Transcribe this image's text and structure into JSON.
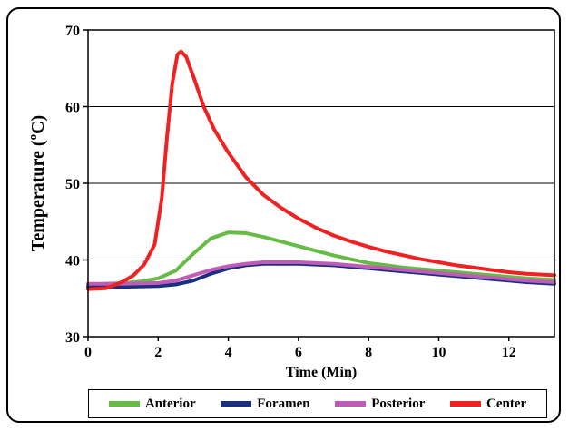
{
  "chart_data": {
    "type": "line",
    "title": "",
    "xlabel": "Time (Min)",
    "ylabel": "Temperature (°C)",
    "ylabel_parts": {
      "before": "Temperature (",
      "sup": "o",
      "after": "C)"
    },
    "xlim": [
      0,
      13.3
    ],
    "ylim": [
      30,
      70
    ],
    "x_ticks": [
      0,
      2,
      4,
      6,
      8,
      10,
      12
    ],
    "y_ticks": [
      30,
      40,
      50,
      60,
      70
    ],
    "grid": "horizontal",
    "legend_position": "bottom",
    "series": [
      {
        "name": "Anterior",
        "color": "#66bb44",
        "points": [
          [
            0,
            36.8
          ],
          [
            0.5,
            36.9
          ],
          [
            1.0,
            37.0
          ],
          [
            1.5,
            37.2
          ],
          [
            2.0,
            37.6
          ],
          [
            2.5,
            38.6
          ],
          [
            3.0,
            40.8
          ],
          [
            3.5,
            42.8
          ],
          [
            4.0,
            43.6
          ],
          [
            4.5,
            43.5
          ],
          [
            5.0,
            43.0
          ],
          [
            5.5,
            42.4
          ],
          [
            6.0,
            41.8
          ],
          [
            6.5,
            41.2
          ],
          [
            7.0,
            40.6
          ],
          [
            7.5,
            40.1
          ],
          [
            8.0,
            39.6
          ],
          [
            8.5,
            39.3
          ],
          [
            9.0,
            39.0
          ],
          [
            9.5,
            38.8
          ],
          [
            10.0,
            38.6
          ],
          [
            10.5,
            38.4
          ],
          [
            11.0,
            38.2
          ],
          [
            11.5,
            38.0
          ],
          [
            12.0,
            37.8
          ],
          [
            12.5,
            37.6
          ],
          [
            13.3,
            37.4
          ]
        ]
      },
      {
        "name": "Foramen",
        "color": "#1a2f80",
        "points": [
          [
            0,
            36.5
          ],
          [
            1.0,
            36.5
          ],
          [
            2.0,
            36.6
          ],
          [
            2.5,
            36.8
          ],
          [
            3.0,
            37.3
          ],
          [
            3.5,
            38.2
          ],
          [
            4.0,
            38.9
          ],
          [
            4.5,
            39.3
          ],
          [
            5.0,
            39.5
          ],
          [
            5.5,
            39.5
          ],
          [
            6.0,
            39.5
          ],
          [
            6.5,
            39.4
          ],
          [
            7.0,
            39.3
          ],
          [
            7.5,
            39.1
          ],
          [
            8.0,
            38.9
          ],
          [
            8.5,
            38.7
          ],
          [
            9.0,
            38.5
          ],
          [
            9.5,
            38.3
          ],
          [
            10.0,
            38.1
          ],
          [
            10.5,
            37.9
          ],
          [
            11.0,
            37.7
          ],
          [
            11.5,
            37.5
          ],
          [
            12.0,
            37.3
          ],
          [
            12.5,
            37.1
          ],
          [
            13.3,
            36.9
          ]
        ]
      },
      {
        "name": "Posterior",
        "color": "#c05cb8",
        "points": [
          [
            0,
            36.9
          ],
          [
            1.0,
            36.9
          ],
          [
            2.0,
            37.0
          ],
          [
            2.5,
            37.3
          ],
          [
            3.0,
            38.0
          ],
          [
            3.5,
            38.7
          ],
          [
            4.0,
            39.2
          ],
          [
            4.5,
            39.5
          ],
          [
            5.0,
            39.7
          ],
          [
            5.5,
            39.7
          ],
          [
            6.0,
            39.7
          ],
          [
            6.5,
            39.6
          ],
          [
            7.0,
            39.5
          ],
          [
            7.5,
            39.3
          ],
          [
            8.0,
            39.1
          ],
          [
            8.5,
            38.9
          ],
          [
            9.0,
            38.7
          ],
          [
            9.5,
            38.5
          ],
          [
            10.0,
            38.3
          ],
          [
            10.5,
            38.1
          ],
          [
            11.0,
            37.9
          ],
          [
            11.5,
            37.7
          ],
          [
            12.0,
            37.5
          ],
          [
            12.5,
            37.3
          ],
          [
            13.3,
            37.1
          ]
        ]
      },
      {
        "name": "Center",
        "color": "#ee2222",
        "points": [
          [
            0,
            36.2
          ],
          [
            0.5,
            36.3
          ],
          [
            0.8,
            36.8
          ],
          [
            1.0,
            37.2
          ],
          [
            1.3,
            38.0
          ],
          [
            1.6,
            39.4
          ],
          [
            1.9,
            42.0
          ],
          [
            2.1,
            48.0
          ],
          [
            2.25,
            56.0
          ],
          [
            2.4,
            63.0
          ],
          [
            2.55,
            66.8
          ],
          [
            2.65,
            67.2
          ],
          [
            2.8,
            66.5
          ],
          [
            3.0,
            64.0
          ],
          [
            3.3,
            60.0
          ],
          [
            3.6,
            57.0
          ],
          [
            4.0,
            54.0
          ],
          [
            4.5,
            50.8
          ],
          [
            5.0,
            48.5
          ],
          [
            5.5,
            46.8
          ],
          [
            6.0,
            45.4
          ],
          [
            6.5,
            44.2
          ],
          [
            7.0,
            43.2
          ],
          [
            7.5,
            42.4
          ],
          [
            8.0,
            41.7
          ],
          [
            8.5,
            41.1
          ],
          [
            9.0,
            40.6
          ],
          [
            9.5,
            40.1
          ],
          [
            10.0,
            39.7
          ],
          [
            10.5,
            39.3
          ],
          [
            11.0,
            39.0
          ],
          [
            11.5,
            38.7
          ],
          [
            12.0,
            38.4
          ],
          [
            12.5,
            38.2
          ],
          [
            13.3,
            38.0
          ]
        ]
      }
    ]
  }
}
